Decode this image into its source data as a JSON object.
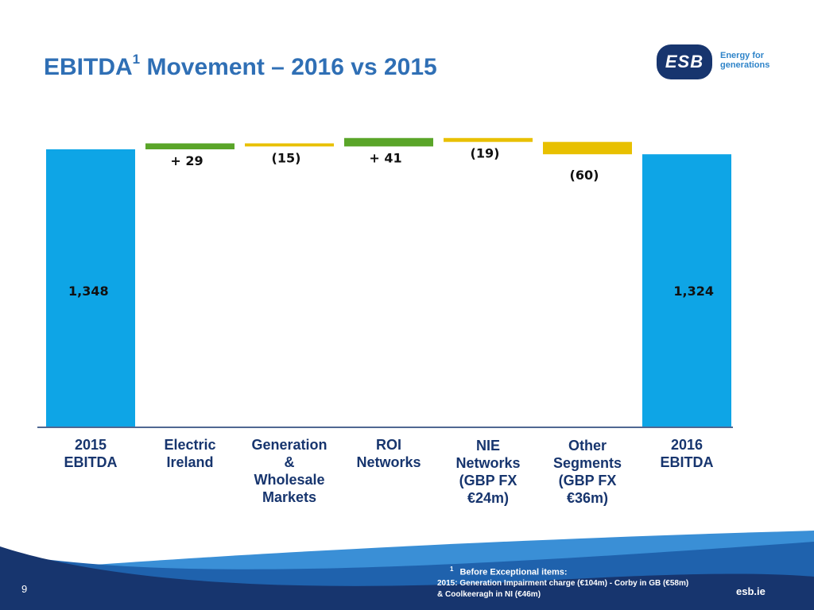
{
  "title": {
    "main": "EBITDA",
    "superscript": "1",
    "rest": " Movement – 2016 vs 2015"
  },
  "logo": {
    "badge_text": "ESB",
    "tagline_1": "Energy for",
    "tagline_2": "generations"
  },
  "chart_data": {
    "type": "bar",
    "subtype": "waterfall",
    "categories": [
      [
        "2015",
        "EBITDA"
      ],
      [
        "Electric",
        "Ireland"
      ],
      [
        "Generation",
        "&",
        "Wholesale",
        "Markets"
      ],
      [
        "ROI",
        "Networks"
      ],
      [
        "NIE",
        "Networks",
        "(GBP FX",
        "€24m)"
      ],
      [
        "Other",
        "Segments",
        "(GBP FX",
        "€36m)"
      ],
      [
        "2016",
        "EBITDA"
      ]
    ],
    "values": [
      1348,
      29,
      -15,
      41,
      -19,
      -60,
      1324
    ],
    "kinds": [
      "total",
      "delta",
      "delta",
      "delta",
      "delta",
      "delta",
      "total"
    ],
    "data_labels": [
      "1,348",
      "+ 29",
      "(15)",
      "+ 41",
      "(19)",
      "(60)",
      "1,324"
    ],
    "ylim": [
      0,
      1400
    ],
    "colors": {
      "total": "#0ea5e6",
      "increase": "#5aa529",
      "decrease": "#e8c000",
      "axis": "#17356e"
    },
    "grid": false,
    "legend": "none"
  },
  "footer": {
    "page_number": "9",
    "footnote_marker": "1",
    "footnote_title": "Before Exceptional items:",
    "footnote_line1": "2015: Generation Impairment charge (€104m) - Corby in GB (€58m)",
    "footnote_line2": "& Coolkeeragh in NI (€46m)",
    "site": "esb.ie",
    "colors": {
      "wave_dark": "#17356e",
      "wave_mid": "#1f62ad",
      "wave_light": "#3a8fd6"
    }
  }
}
